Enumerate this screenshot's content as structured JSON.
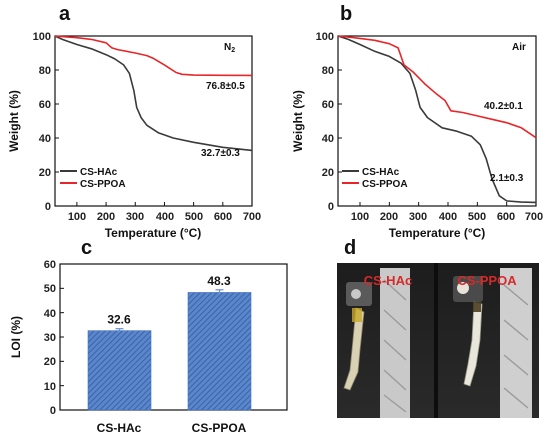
{
  "panels": {
    "a": "a",
    "b": "b",
    "c": "c",
    "d": "d"
  },
  "colors": {
    "cs_hac": "#3a3a3a",
    "cs_ppoa": "#e8262a",
    "bar_fill": "#5b86c9",
    "bar_hatch": "#2f5aa8",
    "photo_text": "#d42a2a"
  },
  "chart_data": [
    {
      "id": "a",
      "type": "line",
      "atmosphere": "N2",
      "xlabel": "Temperature (°C)",
      "ylabel": "Weight (%)",
      "xlim": [
        25,
        700
      ],
      "ylim": [
        0,
        100
      ],
      "xticks": [
        "100",
        "200",
        "300",
        "400",
        "500",
        "600",
        "700"
      ],
      "yticks": [
        "0",
        "20",
        "40",
        "60",
        "80",
        "100"
      ],
      "legend": "bottom-left",
      "series": [
        {
          "name": "CS-HAc",
          "color": "#3a3a3a",
          "points": [
            [
              25,
              100
            ],
            [
              50,
              98
            ],
            [
              100,
              95
            ],
            [
              150,
              92.5
            ],
            [
              200,
              89
            ],
            [
              230,
              86.5
            ],
            [
              260,
              83
            ],
            [
              280,
              78
            ],
            [
              295,
              68
            ],
            [
              305,
              58
            ],
            [
              320,
              52
            ],
            [
              340,
              47.5
            ],
            [
              380,
              43
            ],
            [
              430,
              40
            ],
            [
              500,
              37.5
            ],
            [
              600,
              34.5
            ],
            [
              700,
              32.7
            ]
          ]
        },
        {
          "name": "CS-PPOA",
          "color": "#e8262a",
          "points": [
            [
              25,
              100
            ],
            [
              60,
              99.5
            ],
            [
              100,
              99
            ],
            [
              150,
              98
            ],
            [
              200,
              96
            ],
            [
              220,
              93
            ],
            [
              240,
              92
            ],
            [
              300,
              90
            ],
            [
              340,
              88.5
            ],
            [
              360,
              87
            ],
            [
              400,
              83
            ],
            [
              440,
              78.5
            ],
            [
              460,
              77.5
            ],
            [
              500,
              77
            ],
            [
              600,
              76.9
            ],
            [
              700,
              76.8
            ]
          ]
        }
      ],
      "annotations": [
        "76.8±0.5",
        "32.7±0.3"
      ]
    },
    {
      "id": "b",
      "type": "line",
      "atmosphere": "Air",
      "xlabel": "Temperature (°C)",
      "ylabel": "Weight (%)",
      "xlim": [
        25,
        700
      ],
      "ylim": [
        0,
        100
      ],
      "xticks": [
        "100",
        "200",
        "300",
        "400",
        "500",
        "600",
        "700"
      ],
      "yticks": [
        "0",
        "20",
        "40",
        "60",
        "80",
        "100"
      ],
      "legend": "bottom-left",
      "series": [
        {
          "name": "CS-HAc",
          "color": "#3a3a3a",
          "points": [
            [
              25,
              100
            ],
            [
              60,
              98
            ],
            [
              100,
              95
            ],
            [
              150,
              91
            ],
            [
              200,
              88
            ],
            [
              240,
              84
            ],
            [
              270,
              78
            ],
            [
              290,
              68
            ],
            [
              305,
              58
            ],
            [
              330,
              52
            ],
            [
              380,
              46
            ],
            [
              430,
              44
            ],
            [
              480,
              41
            ],
            [
              510,
              36
            ],
            [
              530,
              28
            ],
            [
              550,
              16
            ],
            [
              575,
              6
            ],
            [
              600,
              3
            ],
            [
              650,
              2.3
            ],
            [
              700,
              2.1
            ]
          ]
        },
        {
          "name": "CS-PPOA",
          "color": "#e8262a",
          "points": [
            [
              25,
              100
            ],
            [
              80,
              99
            ],
            [
              150,
              97.5
            ],
            [
              200,
              95.5
            ],
            [
              230,
              93
            ],
            [
              250,
              83
            ],
            [
              280,
              79
            ],
            [
              320,
              72
            ],
            [
              360,
              66
            ],
            [
              390,
              62
            ],
            [
              410,
              56
            ],
            [
              450,
              55
            ],
            [
              500,
              53
            ],
            [
              550,
              51
            ],
            [
              600,
              49
            ],
            [
              650,
              46
            ],
            [
              700,
              40.2
            ]
          ]
        }
      ],
      "annotations": [
        "40.2±0.1",
        "2.1±0.3"
      ]
    },
    {
      "id": "c",
      "type": "bar",
      "categories": [
        "CS-HAc",
        "CS-PPOA"
      ],
      "values": [
        32.6,
        48.3
      ],
      "value_labels": [
        "32.6",
        "48.3"
      ],
      "errors": [
        0.8,
        1.1
      ],
      "ylabel": "LOI (%)",
      "ylim": [
        0,
        60
      ],
      "yticks": [
        "0",
        "10",
        "20",
        "30",
        "40",
        "50",
        "60"
      ]
    }
  ],
  "photo": {
    "left_label": "CS-HAc",
    "right_label": "CS-PPOA"
  }
}
